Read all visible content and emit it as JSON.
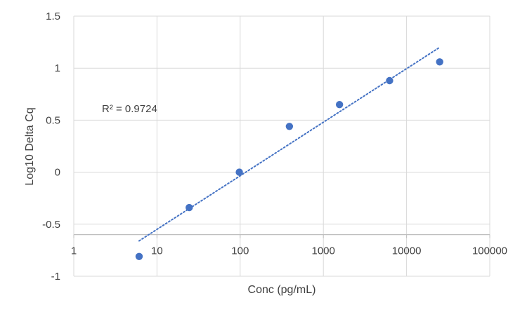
{
  "chart_data": {
    "type": "scatter",
    "xlabel": "Conc (pg/mL)",
    "ylabel": "Log10 Delta Cq",
    "x_scale": "log",
    "xlim": [
      1,
      100000
    ],
    "ylim": [
      -1,
      1.5
    ],
    "x_crosses_y_at": -0.6,
    "grid": true,
    "x_ticks": [
      1,
      10,
      100,
      1000,
      10000,
      100000
    ],
    "x_tick_labels": [
      "1",
      "10",
      "100",
      "1000",
      "10000",
      "100000"
    ],
    "y_ticks": [
      1.5,
      1,
      0.5,
      0,
      -0.5,
      -1
    ],
    "y_tick_labels": [
      "1.5",
      "1",
      "0.5",
      "0",
      "-0.5",
      "-1"
    ],
    "series": [
      {
        "points": [
          {
            "x": 6.1,
            "y": -0.81
          },
          {
            "x": 24.4,
            "y": -0.34
          },
          {
            "x": 97.7,
            "y": 0.0
          },
          {
            "x": 390.6,
            "y": 0.44
          },
          {
            "x": 1562.5,
            "y": 0.65
          },
          {
            "x": 6250,
            "y": 0.88
          },
          {
            "x": 25000,
            "y": 1.06
          }
        ],
        "color": "#4472C4"
      }
    ],
    "trendline": {
      "type": "log",
      "x_start": 6.1,
      "x_end": 25000,
      "y_start": -0.66,
      "y_end": 1.2,
      "style": "dotted",
      "color": "#4472C4"
    },
    "annotation": "R² = 0.9724"
  },
  "colors": {
    "marker": "#4472C4",
    "grid": "#d9d9d9",
    "text": "#404040"
  }
}
